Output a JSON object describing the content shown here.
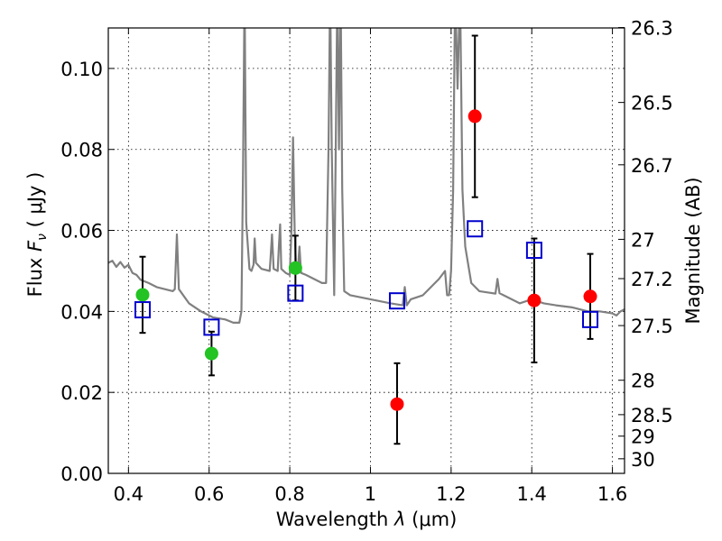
{
  "chart_data": {
    "type": "scatter",
    "xlabel_prefix": "Wavelength",
    "xlabel_symbol": "λ",
    "xlabel_unit": "(μm)",
    "ylabel_prefix": "Flux",
    "ylabel_symbol": "F",
    "ylabel_subscript": "ν",
    "ylabel_unit": "( μJy )",
    "y2label": "Magnitude (AB)",
    "xlim": [
      0.35,
      1.63
    ],
    "ylim": [
      0.0,
      0.11
    ],
    "grid": true,
    "x_ticks": [
      0.4,
      0.6,
      0.8,
      1.0,
      1.2,
      1.4,
      1.6
    ],
    "x_tick_labels": [
      "0.4",
      "0.6",
      "0.8",
      "1",
      "1.2",
      "1.4",
      "1.6"
    ],
    "y_ticks": [
      0.0,
      0.02,
      0.04,
      0.06,
      0.08,
      0.1
    ],
    "y_tick_labels": [
      "0.00",
      "0.02",
      "0.04",
      "0.06",
      "0.08",
      "0.10"
    ],
    "y2_ticks": [
      {
        "label": "26.3",
        "flux": 0.1101
      },
      {
        "label": "26.5",
        "flux": 0.0916
      },
      {
        "label": "26.7",
        "flux": 0.0762
      },
      {
        "label": "27",
        "flux": 0.0578
      },
      {
        "label": "27.2",
        "flux": 0.0481
      },
      {
        "label": "27.5",
        "flux": 0.0365
      },
      {
        "label": "28",
        "flux": 0.023
      },
      {
        "label": "28.5",
        "flux": 0.0145
      },
      {
        "label": "29",
        "flux": 0.0092
      },
      {
        "label": "30",
        "flux": 0.0036
      }
    ],
    "series": [
      {
        "marker": "circle",
        "color": "#22c322",
        "points": [
          {
            "x": 0.435,
            "y": 0.0441,
            "err_low": 0.0094,
            "err_high": 0.0094
          },
          {
            "x": 0.606,
            "y": 0.0296,
            "err_low": 0.0054,
            "err_high": 0.0054
          },
          {
            "x": 0.814,
            "y": 0.0507,
            "err_low": 0.008,
            "err_high": 0.008
          }
        ]
      },
      {
        "marker": "circle",
        "color": "#ff0000",
        "points": [
          {
            "x": 1.066,
            "y": 0.0171,
            "err_low": 0.0098,
            "err_high": 0.0101
          },
          {
            "x": 1.259,
            "y": 0.0882,
            "err_low": 0.02,
            "err_high": 0.0199
          },
          {
            "x": 1.406,
            "y": 0.0427,
            "err_low": 0.0153,
            "err_high": 0.0153
          },
          {
            "x": 1.545,
            "y": 0.0437,
            "err_low": 0.0105,
            "err_high": 0.0105
          }
        ]
      },
      {
        "marker": "open-square",
        "color": "#0000cc",
        "points": [
          {
            "x": 0.435,
            "y": 0.0404
          },
          {
            "x": 0.606,
            "y": 0.0361
          },
          {
            "x": 0.814,
            "y": 0.0445
          },
          {
            "x": 1.066,
            "y": 0.0426
          },
          {
            "x": 1.259,
            "y": 0.0604
          },
          {
            "x": 1.406,
            "y": 0.0551
          },
          {
            "x": 1.545,
            "y": 0.038
          }
        ]
      }
    ],
    "spectrum": {
      "color": "#808080",
      "points": [
        [
          0.35,
          0.052
        ],
        [
          0.36,
          0.0525
        ],
        [
          0.37,
          0.051
        ],
        [
          0.38,
          0.0522
        ],
        [
          0.39,
          0.0508
        ],
        [
          0.4,
          0.0515
        ],
        [
          0.41,
          0.0495
        ],
        [
          0.42,
          0.049
        ],
        [
          0.43,
          0.0478
        ],
        [
          0.45,
          0.047
        ],
        [
          0.47,
          0.046
        ],
        [
          0.49,
          0.0455
        ],
        [
          0.51,
          0.045
        ],
        [
          0.515,
          0.0455
        ],
        [
          0.52,
          0.059
        ],
        [
          0.525,
          0.0455
        ],
        [
          0.55,
          0.042
        ],
        [
          0.58,
          0.04
        ],
        [
          0.61,
          0.0385
        ],
        [
          0.64,
          0.038
        ],
        [
          0.66,
          0.0372
        ],
        [
          0.675,
          0.0372
        ],
        [
          0.68,
          0.04
        ],
        [
          0.684,
          0.075
        ],
        [
          0.688,
          0.12
        ],
        [
          0.692,
          0.062
        ],
        [
          0.7,
          0.0505
        ],
        [
          0.705,
          0.05
        ],
        [
          0.71,
          0.0515
        ],
        [
          0.713,
          0.058
        ],
        [
          0.716,
          0.052
        ],
        [
          0.73,
          0.0505
        ],
        [
          0.75,
          0.05
        ],
        [
          0.752,
          0.0525
        ],
        [
          0.756,
          0.059
        ],
        [
          0.76,
          0.0505
        ],
        [
          0.77,
          0.05
        ],
        [
          0.773,
          0.056
        ],
        [
          0.776,
          0.0615
        ],
        [
          0.779,
          0.0505
        ],
        [
          0.79,
          0.0495
        ],
        [
          0.8,
          0.049
        ],
        [
          0.804,
          0.06
        ],
        [
          0.808,
          0.083
        ],
        [
          0.812,
          0.06
        ],
        [
          0.816,
          0.05
        ],
        [
          0.82,
          0.05
        ],
        [
          0.824,
          0.056
        ],
        [
          0.828,
          0.0495
        ],
        [
          0.84,
          0.049
        ],
        [
          0.86,
          0.048
        ],
        [
          0.88,
          0.047
        ],
        [
          0.89,
          0.047
        ],
        [
          0.896,
          0.08
        ],
        [
          0.9,
          0.12
        ],
        [
          0.904,
          0.08
        ],
        [
          0.91,
          0.044
        ],
        [
          0.914,
          0.08
        ],
        [
          0.918,
          0.12
        ],
        [
          0.922,
          0.08
        ],
        [
          0.926,
          0.12
        ],
        [
          0.93,
          0.07
        ],
        [
          0.935,
          0.045
        ],
        [
          0.95,
          0.044
        ],
        [
          1.0,
          0.043
        ],
        [
          1.05,
          0.042
        ],
        [
          1.08,
          0.0415
        ],
        [
          1.085,
          0.046
        ],
        [
          1.09,
          0.0415
        ],
        [
          1.1,
          0.043
        ],
        [
          1.13,
          0.044
        ],
        [
          1.15,
          0.046
        ],
        [
          1.17,
          0.048
        ],
        [
          1.185,
          0.05
        ],
        [
          1.19,
          0.044
        ],
        [
          1.195,
          0.044
        ],
        [
          1.2,
          0.05
        ],
        [
          1.205,
          0.07
        ],
        [
          1.21,
          0.12
        ],
        [
          1.216,
          0.095
        ],
        [
          1.222,
          0.12
        ],
        [
          1.228,
          0.07
        ],
        [
          1.235,
          0.056
        ],
        [
          1.25,
          0.047
        ],
        [
          1.27,
          0.045
        ],
        [
          1.29,
          0.0447
        ],
        [
          1.31,
          0.0444
        ],
        [
          1.315,
          0.048
        ],
        [
          1.32,
          0.0445
        ],
        [
          1.33,
          0.044
        ],
        [
          1.37,
          0.042
        ],
        [
          1.4,
          0.043
        ],
        [
          1.43,
          0.042
        ],
        [
          1.46,
          0.0415
        ],
        [
          1.5,
          0.041
        ],
        [
          1.54,
          0.04
        ],
        [
          1.57,
          0.04
        ],
        [
          1.6,
          0.0395
        ],
        [
          1.61,
          0.039
        ],
        [
          1.62,
          0.04
        ],
        [
          1.63,
          0.0405
        ]
      ]
    }
  }
}
